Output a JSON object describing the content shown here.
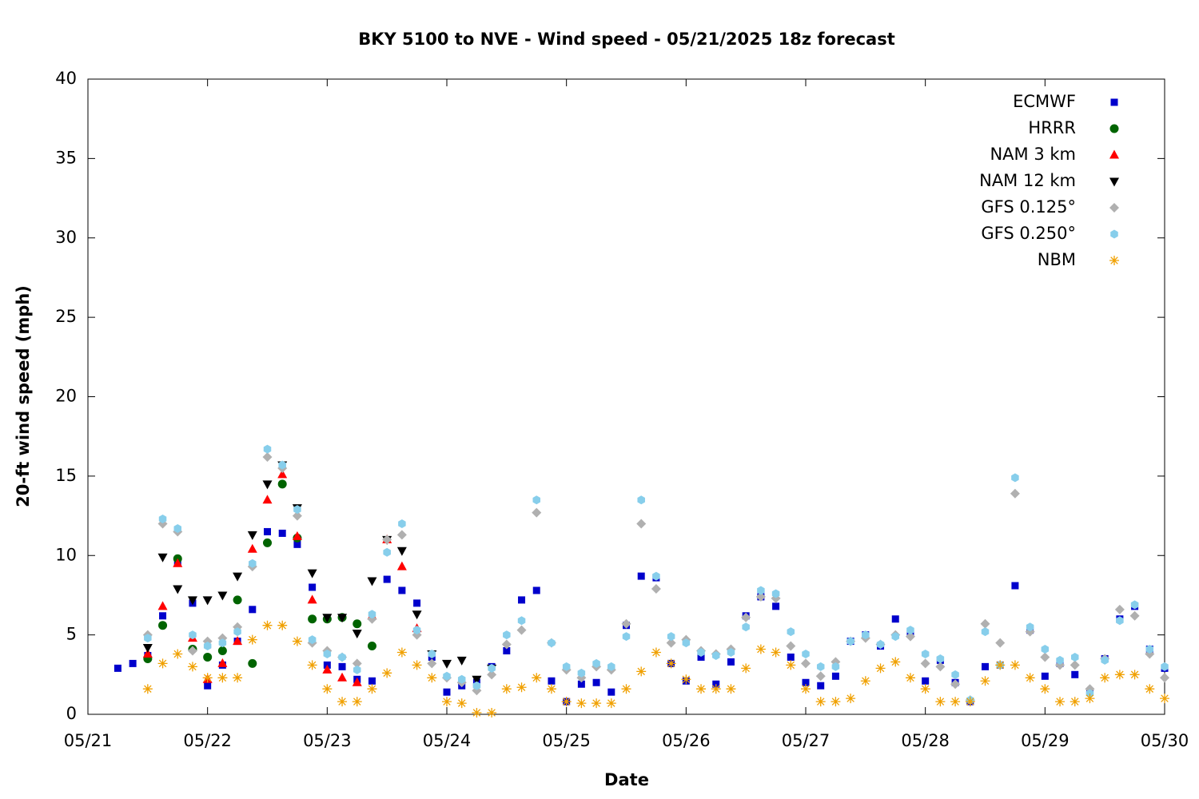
{
  "chart_data": {
    "type": "scatter",
    "title": "BKY 5100 to NVE - Wind speed - 05/21/2025 18z forecast",
    "x_label": "Date",
    "y_label": "20-ft wind speed (mph)",
    "xlim": [
      0,
      9
    ],
    "ylim": [
      0,
      40
    ],
    "xticks": [
      {
        "value": 0,
        "label": "05/21"
      },
      {
        "value": 1,
        "label": "05/22"
      },
      {
        "value": 2,
        "label": "05/23"
      },
      {
        "value": 3,
        "label": "05/24"
      },
      {
        "value": 4,
        "label": "05/25"
      },
      {
        "value": 5,
        "label": "05/26"
      },
      {
        "value": 6,
        "label": "05/27"
      },
      {
        "value": 7,
        "label": "05/28"
      },
      {
        "value": 8,
        "label": "05/29"
      },
      {
        "value": 9,
        "label": "05/30"
      }
    ],
    "yticks": [
      0,
      5,
      10,
      15,
      20,
      25,
      30,
      35,
      40
    ],
    "grid": false,
    "legend": "top-right",
    "series": [
      {
        "name": "ECMWF",
        "color": "#0000cc",
        "marker": "square",
        "x": [
          0.25,
          0.375,
          0.5,
          0.625,
          0.75,
          0.875,
          1,
          1.125,
          1.25,
          1.375,
          1.5,
          1.625,
          1.75,
          1.875,
          2,
          2.125,
          2.25,
          2.375,
          2.5,
          2.625,
          2.75,
          2.875,
          3,
          3.125,
          3.25,
          3.375,
          3.5,
          3.625,
          3.75,
          3.875,
          4,
          4.125,
          4.25,
          4.375,
          4.5,
          4.625,
          4.75,
          4.875,
          5,
          5.125,
          5.25,
          5.375,
          5.5,
          5.625,
          5.75,
          5.875,
          6,
          6.125,
          6.25,
          6.375,
          6.5,
          6.625,
          6.75,
          6.875,
          7,
          7.125,
          7.25,
          7.375,
          7.5,
          7.625,
          7.75,
          7.875,
          8,
          8.125,
          8.25,
          8.375,
          8.5,
          8.625,
          8.75,
          8.875,
          9
        ],
        "values": [
          2.9,
          3.2,
          3.7,
          6.2,
          9.6,
          7.0,
          1.8,
          3.1,
          4.6,
          6.6,
          11.5,
          11.4,
          10.7,
          8.0,
          3.1,
          3.0,
          2.2,
          2.1,
          8.5,
          7.8,
          7.0,
          3.6,
          1.4,
          1.8,
          2.0,
          3.0,
          4.0,
          7.2,
          7.8,
          2.1,
          0.8,
          1.9,
          2.0,
          1.4,
          5.6,
          8.7,
          8.6,
          3.2,
          2.1,
          3.6,
          1.9,
          3.3,
          6.2,
          7.4,
          6.8,
          3.6,
          2.0,
          1.8,
          2.4,
          4.6,
          5.0,
          4.3,
          6.0,
          5.2,
          2.1,
          3.4,
          2.0,
          0.8,
          3.0,
          3.1,
          8.1,
          5.3,
          2.4,
          3.2,
          2.5,
          1.4,
          3.5,
          6.0,
          6.8,
          4.1,
          2.9
        ]
      },
      {
        "name": "HRRR",
        "color": "#006400",
        "marker": "circle",
        "x": [
          0.5,
          0.625,
          0.75,
          0.875,
          1,
          1.125,
          1.25,
          1.375,
          1.5,
          1.625,
          1.75,
          1.875,
          2,
          2.125,
          2.25,
          2.375
        ],
        "values": [
          3.5,
          5.6,
          9.8,
          4.1,
          3.6,
          4.0,
          7.2,
          3.2,
          10.8,
          14.5,
          11.1,
          6.0,
          6.0,
          6.1,
          5.7,
          4.3
        ]
      },
      {
        "name": "NAM 3 km",
        "color": "#ff0000",
        "marker": "triangle",
        "x": [
          0.5,
          0.625,
          0.75,
          0.875,
          1,
          1.125,
          1.25,
          1.375,
          1.5,
          1.625,
          1.75,
          1.875,
          2,
          2.125,
          2.25,
          2.375,
          2.5,
          2.625,
          2.75
        ],
        "values": [
          3.8,
          6.8,
          9.5,
          4.8,
          2.2,
          3.2,
          4.6,
          10.4,
          13.5,
          15.1,
          11.2,
          7.2,
          2.8,
          2.3,
          2.0,
          6.2,
          11.0,
          9.3,
          5.4
        ]
      },
      {
        "name": "NAM 12 km",
        "color": "#000000",
        "marker": "triangle-down",
        "x": [
          0.5,
          0.625,
          0.75,
          0.875,
          1,
          1.125,
          1.25,
          1.375,
          1.5,
          1.625,
          1.75,
          1.875,
          2,
          2.125,
          2.25,
          2.375,
          2.5,
          2.625,
          2.75,
          2.875,
          3,
          3.125,
          3.25,
          3.375
        ],
        "values": [
          4.2,
          9.9,
          7.9,
          7.2,
          7.2,
          7.5,
          8.7,
          11.3,
          14.5,
          15.7,
          13.0,
          8.9,
          6.1,
          6.1,
          5.1,
          8.4,
          11.0,
          10.3,
          6.3,
          3.8,
          3.2,
          3.4,
          2.2,
          2.9
        ]
      },
      {
        "name": "GFS 0.125°",
        "color": "#b0b0b0",
        "marker": "diamond",
        "x": [
          0.5,
          0.625,
          0.75,
          0.875,
          1,
          1.125,
          1.25,
          1.375,
          1.5,
          1.625,
          1.75,
          1.875,
          2,
          2.125,
          2.25,
          2.375,
          2.5,
          2.625,
          2.75,
          2.875,
          3,
          3.125,
          3.25,
          3.375,
          3.5,
          3.625,
          3.75,
          3.875,
          4,
          4.125,
          4.25,
          4.375,
          4.5,
          4.625,
          4.75,
          4.875,
          5,
          5.125,
          5.25,
          5.375,
          5.5,
          5.625,
          5.75,
          5.875,
          6,
          6.125,
          6.25,
          6.375,
          6.5,
          6.625,
          6.75,
          6.875,
          7,
          7.125,
          7.25,
          7.375,
          7.5,
          7.625,
          7.75,
          7.875,
          8,
          8.125,
          8.25,
          8.375,
          8.5,
          8.625,
          8.75,
          8.875,
          9
        ],
        "values": [
          5.0,
          12.0,
          11.5,
          4.0,
          4.6,
          4.8,
          5.5,
          9.3,
          16.2,
          15.5,
          12.5,
          4.5,
          4.0,
          3.6,
          3.2,
          6.0,
          11.0,
          11.3,
          5.0,
          3.2,
          2.3,
          2.0,
          1.5,
          2.5,
          4.4,
          5.3,
          12.7,
          4.5,
          2.8,
          2.3,
          3.0,
          2.8,
          5.7,
          12.0,
          7.9,
          4.5,
          4.7,
          4.0,
          3.8,
          4.1,
          6.1,
          7.4,
          7.3,
          4.3,
          3.2,
          2.4,
          3.3,
          4.6,
          4.8,
          4.4,
          5.0,
          4.9,
          3.2,
          3.0,
          1.9,
          0.9,
          5.7,
          4.5,
          13.9,
          5.2,
          3.6,
          3.1,
          3.1,
          1.6,
          3.5,
          6.6,
          6.2,
          3.8,
          2.3
        ]
      },
      {
        "name": "GFS 0.250°",
        "color": "#87ceeb",
        "marker": "hexagon",
        "x": [
          0.5,
          0.625,
          0.75,
          0.875,
          1,
          1.125,
          1.25,
          1.375,
          1.5,
          1.625,
          1.75,
          1.875,
          2,
          2.125,
          2.25,
          2.375,
          2.5,
          2.625,
          2.75,
          2.875,
          3,
          3.125,
          3.25,
          3.375,
          3.5,
          3.625,
          3.75,
          3.875,
          4,
          4.125,
          4.25,
          4.375,
          4.5,
          4.625,
          4.75,
          4.875,
          5,
          5.125,
          5.25,
          5.375,
          5.5,
          5.625,
          5.75,
          5.875,
          6,
          6.125,
          6.25,
          6.375,
          6.5,
          6.625,
          6.75,
          6.875,
          7,
          7.125,
          7.25,
          7.375,
          7.5,
          7.625,
          7.75,
          7.875,
          8,
          8.125,
          8.25,
          8.375,
          8.5,
          8.625,
          8.75,
          8.875,
          9
        ],
        "values": [
          4.8,
          12.3,
          11.7,
          5.0,
          4.3,
          4.5,
          5.2,
          9.5,
          16.7,
          15.7,
          12.9,
          4.7,
          3.8,
          3.6,
          2.8,
          6.3,
          10.2,
          12.0,
          5.3,
          3.8,
          2.4,
          2.2,
          1.8,
          2.9,
          5.0,
          5.9,
          13.5,
          4.5,
          3.0,
          2.6,
          3.2,
          3.0,
          4.9,
          13.5,
          8.7,
          4.9,
          4.5,
          3.9,
          3.7,
          3.9,
          5.5,
          7.8,
          7.6,
          5.2,
          3.8,
          3.0,
          3.0,
          4.6,
          5.0,
          4.4,
          4.9,
          5.3,
          3.8,
          3.5,
          2.5,
          0.9,
          5.2,
          3.1,
          14.9,
          5.5,
          4.1,
          3.4,
          3.6,
          1.3,
          3.4,
          5.9,
          6.9,
          4.1,
          3.0
        ]
      },
      {
        "name": "NBM",
        "color": "#f0a000",
        "marker": "asterisk",
        "x": [
          0.5,
          0.625,
          0.75,
          0.875,
          1,
          1.125,
          1.25,
          1.375,
          1.5,
          1.625,
          1.75,
          1.875,
          2,
          2.125,
          2.25,
          2.375,
          2.5,
          2.625,
          2.75,
          2.875,
          3,
          3.125,
          3.25,
          3.375,
          3.5,
          3.625,
          3.75,
          3.875,
          4,
          4.125,
          4.25,
          4.375,
          4.5,
          4.625,
          4.75,
          4.875,
          5,
          5.125,
          5.25,
          5.375,
          5.5,
          5.625,
          5.75,
          5.875,
          6,
          6.125,
          6.25,
          6.375,
          6.5,
          6.625,
          6.75,
          6.875,
          7,
          7.125,
          7.25,
          7.375,
          7.5,
          7.625,
          7.75,
          7.875,
          8,
          8.125,
          8.25,
          8.375,
          8.5,
          8.625,
          8.75,
          8.875,
          9
        ],
        "values": [
          1.6,
          3.2,
          3.8,
          3.0,
          2.3,
          2.3,
          2.3,
          4.7,
          5.6,
          5.6,
          4.6,
          3.1,
          1.6,
          0.8,
          0.8,
          1.6,
          2.6,
          3.9,
          3.1,
          2.3,
          0.8,
          0.7,
          0.1,
          0.1,
          1.6,
          1.7,
          2.3,
          1.6,
          0.8,
          0.7,
          0.7,
          0.7,
          1.6,
          2.7,
          3.9,
          3.2,
          2.2,
          1.6,
          1.6,
          1.6,
          2.9,
          4.1,
          3.9,
          3.1,
          1.6,
          0.8,
          0.8,
          1.0,
          2.1,
          2.9,
          3.3,
          2.3,
          1.6,
          0.8,
          0.8,
          0.8,
          2.1,
          3.1,
          3.1,
          2.3,
          1.6,
          0.8,
          0.8,
          1.0,
          2.3,
          2.5,
          2.5,
          1.6,
          1.0
        ]
      }
    ]
  }
}
